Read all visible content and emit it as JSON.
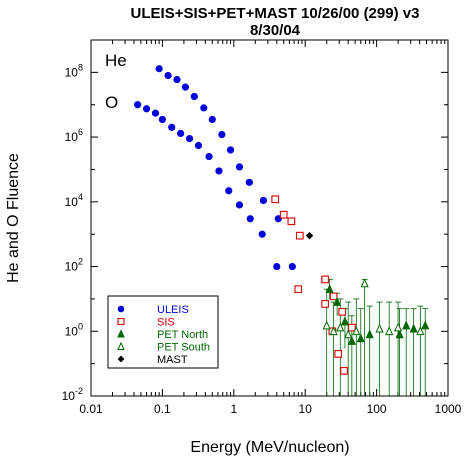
{
  "chart_data": {
    "type": "scatter",
    "title_line1": "ULEIS+SIS+PET+MAST  10/26/00 (299) v3",
    "title_line2": "8/30/04",
    "xlabel": "Energy (MeV/nucleon)",
    "ylabel": "He and O Fluence",
    "xscale": "log",
    "yscale": "log",
    "xlim": [
      0.01,
      1000
    ],
    "ylim": [
      0.01,
      1000000000
    ],
    "x_ticks": [
      "0.01",
      "0.1",
      "1",
      "10",
      "100",
      "1000"
    ],
    "y_ticks": [
      {
        "base": "10",
        "exp": "-2",
        "value": 0.01
      },
      {
        "base": "10",
        "exp": "0",
        "value": 1
      },
      {
        "base": "10",
        "exp": "2",
        "value": 100
      },
      {
        "base": "10",
        "exp": "4",
        "value": 10000
      },
      {
        "base": "10",
        "exp": "6",
        "value": 1000000
      },
      {
        "base": "10",
        "exp": "8",
        "value": 100000000
      }
    ],
    "annotations": [
      {
        "text": "He",
        "x": 0.047,
        "y": 200000000
      },
      {
        "text": "O",
        "x": 0.047,
        "y": 9000000
      }
    ],
    "legend_position": "bottom-left",
    "series": [
      {
        "name": "ULEIS",
        "instrument": "ULEIS",
        "species": "He",
        "marker": "filled-circle",
        "color": "#0000dd",
        "points": [
          {
            "x": 0.09,
            "y": 130000000
          },
          {
            "x": 0.12,
            "y": 80000000
          },
          {
            "x": 0.16,
            "y": 60000000
          },
          {
            "x": 0.21,
            "y": 35000000
          },
          {
            "x": 0.28,
            "y": 18000000
          },
          {
            "x": 0.38,
            "y": 8000000
          },
          {
            "x": 0.5,
            "y": 3500000
          },
          {
            "x": 0.68,
            "y": 1200000
          },
          {
            "x": 0.9,
            "y": 400000
          },
          {
            "x": 1.2,
            "y": 120000
          },
          {
            "x": 1.65,
            "y": 40000
          },
          {
            "x": 2.6,
            "y": 11000
          },
          {
            "x": 4.2,
            "y": 3000
          },
          {
            "x": 6.6,
            "y": 100
          }
        ]
      },
      {
        "name": "ULEIS",
        "instrument": "ULEIS",
        "species": "O",
        "marker": "filled-circle",
        "color": "#0000dd",
        "points": [
          {
            "x": 0.045,
            "y": 10000000
          },
          {
            "x": 0.06,
            "y": 7500000
          },
          {
            "x": 0.08,
            "y": 5500000
          },
          {
            "x": 0.1,
            "y": 3500000
          },
          {
            "x": 0.135,
            "y": 2000000
          },
          {
            "x": 0.18,
            "y": 1300000
          },
          {
            "x": 0.24,
            "y": 900000
          },
          {
            "x": 0.32,
            "y": 550000
          },
          {
            "x": 0.45,
            "y": 250000
          },
          {
            "x": 0.62,
            "y": 90000
          },
          {
            "x": 0.85,
            "y": 22000
          },
          {
            "x": 1.2,
            "y": 8000
          },
          {
            "x": 1.7,
            "y": 3000
          },
          {
            "x": 2.5,
            "y": 1000
          },
          {
            "x": 4.0,
            "y": 100
          },
          {
            "x": 8.0,
            "y": 20
          }
        ]
      },
      {
        "name": "SIS",
        "instrument": "SIS",
        "species": "He",
        "marker": "open-square",
        "color": "#dd0000",
        "points": [
          {
            "x": 3.8,
            "y": 12000
          },
          {
            "x": 5.0,
            "y": 4000
          },
          {
            "x": 6.4,
            "y": 2500
          },
          {
            "x": 8.4,
            "y": 900
          },
          {
            "x": 19,
            "y": 40
          },
          {
            "x": 25,
            "y": 12
          },
          {
            "x": 33,
            "y": 4
          },
          {
            "x": 45,
            "y": 1.3
          }
        ]
      },
      {
        "name": "SIS",
        "instrument": "SIS",
        "species": "O",
        "marker": "open-square",
        "color": "#dd0000",
        "points": [
          {
            "x": 8.0,
            "y": 20
          },
          {
            "x": 19,
            "y": 7
          },
          {
            "x": 24,
            "y": 1
          },
          {
            "x": 29,
            "y": 0.2
          },
          {
            "x": 35,
            "y": 0.06
          }
        ]
      },
      {
        "name": "PET North",
        "instrument": "PET North",
        "species": "He",
        "marker": "filled-triangle",
        "color": "#006600",
        "points": [
          {
            "x": 22,
            "y": 20,
            "ylo": 10,
            "yhi": 40
          },
          {
            "x": 28,
            "y": 8,
            "ylo": 3,
            "yhi": 15
          },
          {
            "x": 36,
            "y": 2,
            "ylo": 0.3,
            "yhi": 5
          },
          {
            "x": 45,
            "y": 0.5,
            "ylo": 0.01,
            "yhi": 3
          },
          {
            "x": 60,
            "y": 0.6,
            "ylo": 0.01,
            "yhi": 5
          },
          {
            "x": 80,
            "y": 0.8,
            "ylo": 0.01,
            "yhi": 6
          },
          {
            "x": 210,
            "y": 0.8,
            "ylo": 0.01,
            "yhi": 5
          },
          {
            "x": 260,
            "y": 1.5,
            "ylo": 0.01,
            "yhi": 5
          },
          {
            "x": 330,
            "y": 1.2,
            "ylo": 0.01,
            "yhi": 5
          },
          {
            "x": 480,
            "y": 1.5,
            "ylo": 0.01,
            "yhi": 5
          }
        ]
      },
      {
        "name": "PET South",
        "instrument": "PET South",
        "species": "He",
        "marker": "open-triangle",
        "color": "#006600",
        "points": [
          {
            "x": 20,
            "y": 1.5,
            "ylo": 0.01,
            "yhi": 20
          },
          {
            "x": 25,
            "y": 1.0,
            "ylo": 0.01,
            "yhi": 8
          },
          {
            "x": 31,
            "y": 1.3,
            "ylo": 0.01,
            "yhi": 10
          },
          {
            "x": 40,
            "y": 0.8,
            "ylo": 0.01,
            "yhi": 8
          },
          {
            "x": 52,
            "y": 1.0,
            "ylo": 0.01,
            "yhi": 10
          },
          {
            "x": 68,
            "y": 30,
            "ylo": 0.01,
            "yhi": 40
          },
          {
            "x": 110,
            "y": 1.2,
            "ylo": 0.01,
            "yhi": 8
          },
          {
            "x": 150,
            "y": 1.0,
            "ylo": 0.01,
            "yhi": 8
          },
          {
            "x": 200,
            "y": 1.3,
            "ylo": 0.01,
            "yhi": 8
          },
          {
            "x": 410,
            "y": 1.0,
            "ylo": 0.01,
            "yhi": 6
          }
        ]
      },
      {
        "name": "MAST",
        "instrument": "MAST",
        "species": "He",
        "marker": "filled-diamond",
        "color": "#000000",
        "points": [
          {
            "x": 11.5,
            "y": 900
          }
        ]
      }
    ],
    "legend": [
      {
        "label": "ULEIS",
        "marker": "filled-circle",
        "color": "#0000dd",
        "text_color": "#0000dd"
      },
      {
        "label": "SIS",
        "marker": "open-square",
        "color": "#dd0000",
        "text_color": "#dd0000"
      },
      {
        "label": "PET North",
        "marker": "filled-triangle",
        "color": "#006600",
        "text_color": "#006600"
      },
      {
        "label": "PET South",
        "marker": "open-triangle",
        "color": "#006600",
        "text_color": "#006600"
      },
      {
        "label": "MAST",
        "marker": "filled-diamond",
        "color": "#000000",
        "text_color": "#000000"
      }
    ]
  }
}
